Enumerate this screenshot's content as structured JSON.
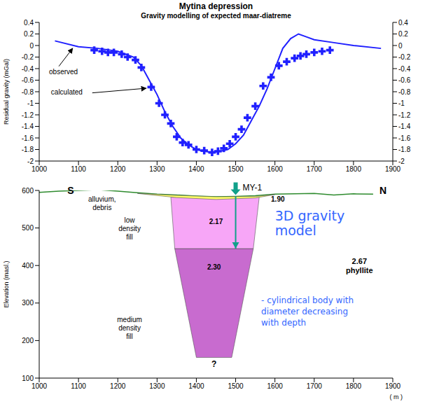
{
  "chart_data": [
    {
      "type": "line",
      "title": "Mytina depression",
      "subtitle": "Gravity modelling of expected maar-diatreme",
      "y_label": "Residual gravity (mGal)",
      "xlim": [
        1000,
        1900
      ],
      "xticks": [
        1000,
        1100,
        1200,
        1300,
        1400,
        1500,
        1600,
        1700,
        1800,
        1900
      ],
      "ylim": [
        -2,
        0.4
      ],
      "yticks": [
        0.4,
        0.2,
        0,
        -0.2,
        -0.4,
        -0.6,
        -0.8,
        -1,
        -1.2,
        -1.4,
        -1.6,
        -1.8,
        -2
      ],
      "y2lim": [
        -2,
        0.4
      ],
      "y2ticks": [
        0.4,
        0.2,
        0,
        -0.2,
        -0.4,
        -0.6,
        -0.8,
        -1,
        -1.2,
        -1.4,
        -1.6,
        -1.8,
        -2
      ],
      "series": [
        {
          "name": "observed",
          "type": "scatter",
          "marker": "cross",
          "color": "#2020ff",
          "x": [
            1140,
            1160,
            1175,
            1190,
            1210,
            1225,
            1245,
            1260,
            1285,
            1305,
            1320,
            1335,
            1350,
            1365,
            1380,
            1400,
            1420,
            1440,
            1455,
            1470,
            1485,
            1500,
            1515,
            1530,
            1550,
            1570,
            1590,
            1610,
            1630,
            1650,
            1665,
            1680,
            1700,
            1720,
            1740
          ],
          "values": [
            -0.08,
            -0.1,
            -0.12,
            -0.12,
            -0.15,
            -0.2,
            -0.25,
            -0.38,
            -0.72,
            -1,
            -1.2,
            -1.35,
            -1.58,
            -1.68,
            -1.72,
            -1.8,
            -1.82,
            -1.85,
            -1.83,
            -1.78,
            -1.7,
            -1.58,
            -1.45,
            -1.25,
            -1.05,
            -0.7,
            -0.55,
            -0.35,
            -0.28,
            -0.22,
            -0.18,
            -0.15,
            -0.12,
            -0.1,
            -0.08
          ]
        },
        {
          "name": "calculated",
          "type": "line",
          "color": "#2020ff",
          "x": [
            1040,
            1100,
            1150,
            1200,
            1240,
            1260,
            1280,
            1300,
            1320,
            1340,
            1360,
            1380,
            1400,
            1420,
            1440,
            1460,
            1480,
            1500,
            1520,
            1540,
            1560,
            1580,
            1600,
            1620,
            1640,
            1660,
            1680,
            1700,
            1750,
            1800,
            1870
          ],
          "values": [
            0.08,
            -0.02,
            -0.05,
            -0.1,
            -0.2,
            -0.35,
            -0.6,
            -0.85,
            -1.15,
            -1.4,
            -1.6,
            -1.72,
            -1.8,
            -1.83,
            -1.85,
            -1.83,
            -1.8,
            -1.7,
            -1.55,
            -1.3,
            -1.05,
            -0.75,
            -0.4,
            -0.05,
            0.12,
            0.2,
            0.15,
            0.1,
            0.05,
            0,
            -0.05
          ]
        }
      ]
    },
    {
      "type": "cross_section",
      "title": "3D gravity model",
      "note": "- cylindrical body with diameter decreasing with depth",
      "y_label": "Elevation (masl.)",
      "x_label": "( m )",
      "xlim": [
        1000,
        1900
      ],
      "xticks": [
        1000,
        1100,
        1200,
        1300,
        1400,
        1500,
        1600,
        1700,
        1800,
        1900
      ],
      "ylim": [
        100,
        600
      ],
      "yticks": [
        100,
        200,
        300,
        400,
        500,
        600
      ],
      "directions": [
        "S",
        "N"
      ],
      "topography": {
        "color": "#2e8b2e",
        "x": [
          1000,
          1050,
          1100,
          1150,
          1200,
          1250,
          1300,
          1350,
          1400,
          1450,
          1500,
          1550,
          1600,
          1650,
          1700,
          1750,
          1800,
          1850
        ],
        "y": [
          595,
          598,
          600,
          602,
          598,
          594,
          590,
          588,
          585,
          583,
          584,
          586,
          590,
          591,
          592,
          588,
          591,
          590
        ]
      },
      "bodies": [
        {
          "name": "alluvium, debris",
          "density": "1.90",
          "color": "#ffff66",
          "x": [
            1250,
            1350,
            1450,
            1550,
            1600,
            1550,
            1450,
            1350
          ],
          "y": [
            592,
            587,
            583,
            584,
            589,
            580,
            576,
            581
          ]
        },
        {
          "name": "low density fill",
          "density": "2.17",
          "color": "#f7a6f7",
          "x": [
            1335,
            1560,
            1545,
            1345
          ],
          "y": [
            582,
            582,
            445,
            445
          ]
        },
        {
          "name": "medium density fill",
          "density": "2.30",
          "color": "#c86bcf",
          "x": [
            1345,
            1545,
            1490,
            1400
          ],
          "y": [
            445,
            445,
            155,
            155
          ]
        }
      ],
      "host": {
        "name": "phyllite",
        "density": "2.67"
      },
      "borehole": {
        "name": "MY-1",
        "color": "#11a08a",
        "x": 1500,
        "top": 584,
        "bottom": 445
      },
      "bottom_label": "?"
    }
  ]
}
